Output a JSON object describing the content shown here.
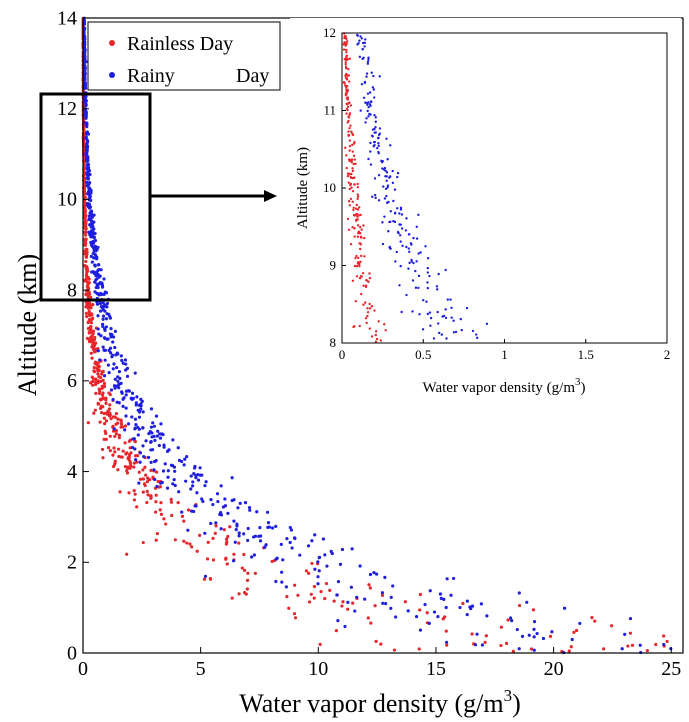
{
  "chart_data": [
    {
      "type": "scatter",
      "xlabel": "Water vapor density (g/m",
      "xlabel_sup": "3",
      "xlabel_end": ")",
      "ylabel": "Altitude (km)",
      "xlim": [
        0,
        25.5
      ],
      "ylim": [
        0,
        14
      ],
      "xticks": [
        "0",
        "5",
        "10",
        "15",
        "20",
        "25"
      ],
      "yticks": [
        "0",
        "2",
        "4",
        "6",
        "8",
        "10",
        "12",
        "14"
      ],
      "xtick_values": [
        0,
        5,
        10,
        15,
        20,
        25
      ],
      "ytick_values": [
        0,
        2,
        4,
        6,
        8,
        10,
        12,
        14
      ],
      "grid": false,
      "legend_position": "top-left",
      "zoom_region": {
        "x": [
          0,
          2
        ],
        "y": [
          8,
          12
        ]
      },
      "series": [
        {
          "name": "Rainless Day",
          "color": "#e8262b",
          "label_gap": false
        },
        {
          "name": "Rainy",
          "name_tail": "Day",
          "color": "#1f1fe0",
          "label_gap": true
        }
      ]
    },
    {
      "type": "scatter",
      "xlabel": "Water vapor density (g/m",
      "xlabel_sup": "3",
      "xlabel_end": ")",
      "ylabel": "Altitude (km)",
      "xlim": [
        0,
        2
      ],
      "ylim": [
        8,
        12
      ],
      "xticks": [
        "0",
        "0.5",
        "1",
        "1.5",
        "2"
      ],
      "yticks": [
        "8",
        "9",
        "10",
        "11",
        "12"
      ],
      "xtick_values": [
        0,
        0.5,
        1,
        1.5,
        2
      ],
      "ytick_values": [
        8,
        9,
        10,
        11,
        12
      ],
      "grid": false
    }
  ]
}
